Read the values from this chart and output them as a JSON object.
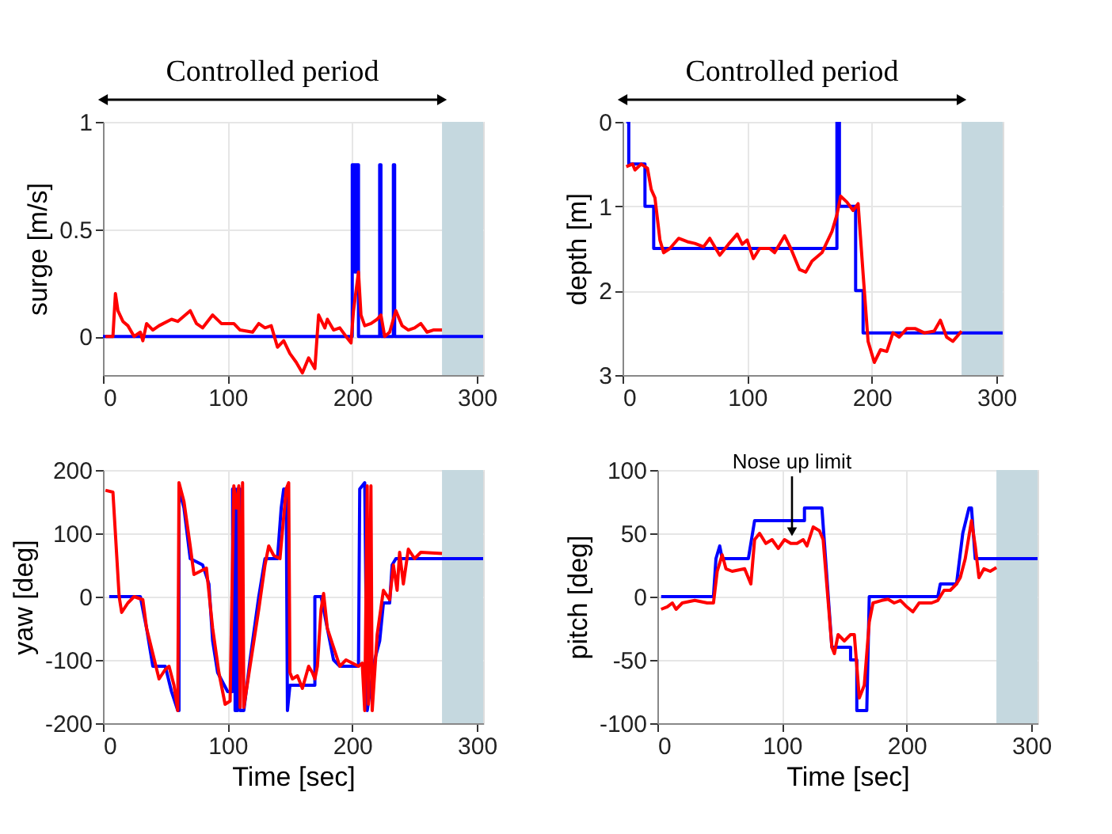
{
  "chart_data": [
    {
      "type": "line",
      "title": "Controlled period",
      "ylabel": "surge [m/s]",
      "xlim": [
        0,
        305
      ],
      "xticks": [
        0,
        100,
        200,
        300
      ],
      "ylim": [
        -0.18,
        1
      ],
      "yticks": [
        0,
        0.5,
        1
      ],
      "grid": true,
      "bands": [
        {
          "axis": "x",
          "from": 272,
          "to": 305,
          "color": "#c5d8df"
        }
      ],
      "series": [
        {
          "color": "#0000ff",
          "x": [
            0,
            200,
            200,
            202,
            202,
            203,
            203,
            205,
            205,
            222,
            222,
            223,
            223,
            233,
            233,
            234,
            234,
            305
          ],
          "values": [
            0,
            0,
            0.8,
            0.8,
            0.3,
            0.3,
            0.8,
            0.8,
            0,
            0,
            0.8,
            0.8,
            0,
            0,
            0.8,
            0.8,
            0,
            0
          ]
        },
        {
          "color": "#ff0000",
          "x": [
            2,
            8,
            10,
            12,
            16,
            20,
            25,
            30,
            32,
            35,
            40,
            45,
            55,
            60,
            70,
            75,
            80,
            88,
            95,
            105,
            110,
            120,
            125,
            130,
            135,
            140,
            145,
            150,
            155,
            160,
            165,
            170,
            173,
            178,
            180,
            185,
            190,
            195,
            199,
            201,
            205,
            207,
            210,
            215,
            220,
            223,
            226,
            230,
            235,
            240,
            245,
            250,
            255,
            260,
            265,
            272
          ],
          "values": [
            0,
            0,
            0.2,
            0.12,
            0.07,
            0.05,
            0,
            0.02,
            -0.02,
            0.06,
            0.03,
            0.05,
            0.08,
            0.07,
            0.12,
            0.06,
            0.04,
            0.1,
            0.06,
            0.06,
            0.03,
            0.02,
            0.06,
            0.04,
            0.05,
            -0.05,
            -0.02,
            -0.08,
            -0.12,
            -0.17,
            -0.1,
            -0.15,
            0.1,
            0.04,
            0.08,
            0.03,
            0.04,
            0,
            -0.03,
            0.12,
            0.3,
            0.1,
            0.05,
            0.06,
            0.08,
            0.1,
            0,
            0.02,
            0.12,
            0.05,
            0.03,
            0.04,
            0.06,
            0.02,
            0.03,
            0.03
          ]
        }
      ]
    },
    {
      "type": "line",
      "title": "Controlled period",
      "ylabel": "depth [m]",
      "xlim": [
        0,
        305
      ],
      "xticks": [
        0,
        100,
        200,
        300
      ],
      "ylim": [
        3,
        0
      ],
      "yticks": [
        0,
        1,
        2,
        3
      ],
      "grid": true,
      "bands": [
        {
          "axis": "x",
          "from": 272,
          "to": 305,
          "color": "#c5d8df"
        }
      ],
      "series": [
        {
          "color": "#0000ff",
          "x": [
            3,
            5,
            5,
            18,
            18,
            25,
            25,
            172,
            172,
            174,
            174,
            187,
            187,
            193,
            193,
            305
          ],
          "values": [
            0,
            0,
            0.5,
            0.5,
            1,
            1,
            1.5,
            1.5,
            0,
            0,
            1,
            1,
            2,
            2,
            2.5,
            2.5
          ]
        },
        {
          "color": "#ff0000",
          "x": [
            3,
            8,
            10,
            15,
            20,
            23,
            26,
            30,
            33,
            38,
            45,
            52,
            58,
            65,
            70,
            78,
            85,
            92,
            96,
            100,
            105,
            110,
            118,
            122,
            130,
            135,
            142,
            147,
            152,
            160,
            168,
            172,
            175,
            180,
            185,
            189,
            193,
            197,
            202,
            207,
            212,
            217,
            222,
            228,
            235,
            242,
            250,
            255,
            260,
            265,
            272
          ],
          "values": [
            0.53,
            0.5,
            0.57,
            0.5,
            0.55,
            0.8,
            0.9,
            1.4,
            1.55,
            1.5,
            1.38,
            1.42,
            1.44,
            1.48,
            1.38,
            1.58,
            1.45,
            1.33,
            1.45,
            1.4,
            1.62,
            1.5,
            1.5,
            1.55,
            1.35,
            1.5,
            1.75,
            1.78,
            1.65,
            1.55,
            1.3,
            1.1,
            0.88,
            0.95,
            1.05,
            0.97,
            1.8,
            2.6,
            2.85,
            2.7,
            2.72,
            2.5,
            2.55,
            2.45,
            2.45,
            2.5,
            2.48,
            2.35,
            2.55,
            2.6,
            2.48
          ]
        }
      ]
    },
    {
      "type": "line",
      "xlabel": "Time [sec]",
      "ylabel": "yaw [deg]",
      "xlim": [
        0,
        305
      ],
      "xticks": [
        0,
        100,
        200,
        300
      ],
      "ylim": [
        -200,
        200
      ],
      "yticks": [
        -200,
        -100,
        0,
        100,
        200
      ],
      "grid": true,
      "bands": [
        {
          "axis": "x",
          "from": 272,
          "to": 305,
          "color": "#c5d8df"
        }
      ],
      "series": [
        {
          "color": "#0000ff",
          "x": [
            5,
            30,
            35,
            40,
            50,
            55,
            60,
            61,
            61,
            65,
            70,
            80,
            85,
            88,
            92,
            100,
            104,
            104,
            106,
            106,
            108,
            108,
            110,
            110,
            113,
            118,
            125,
            130,
            140,
            143,
            145,
            147,
            148,
            150,
            170,
            170,
            175,
            185,
            190,
            205,
            206,
            210,
            212,
            218,
            222,
            225,
            230,
            232,
            235,
            305
          ],
          "values": [
            0,
            0,
            -50,
            -110,
            -110,
            -150,
            -180,
            -180,
            170,
            140,
            60,
            50,
            20,
            -70,
            -120,
            -150,
            -150,
            170,
            170,
            -180,
            -180,
            170,
            170,
            -180,
            -180,
            -100,
            0,
            60,
            60,
            140,
            170,
            170,
            -180,
            -140,
            -140,
            0,
            0,
            -100,
            -110,
            -110,
            170,
            180,
            -180,
            -100,
            -70,
            -10,
            -10,
            50,
            60,
            60
          ]
        },
        {
          "color": "#ff0000",
          "x": [
            2,
            8,
            13,
            15,
            20,
            25,
            32,
            35,
            40,
            45,
            50,
            53,
            57,
            60,
            61,
            65,
            70,
            73,
            78,
            83,
            88,
            93,
            98,
            102,
            105,
            107,
            109,
            110,
            112,
            113,
            118,
            125,
            130,
            133,
            137,
            142,
            147,
            149,
            150,
            152,
            156,
            160,
            165,
            168,
            170,
            172,
            175,
            177,
            180,
            185,
            190,
            195,
            200,
            205,
            208,
            210,
            212,
            213,
            215,
            216,
            220,
            225,
            230,
            233,
            236,
            238,
            241,
            245,
            250,
            255,
            272
          ],
          "values": [
            168,
            165,
            0,
            -25,
            -10,
            0,
            -5,
            -50,
            -90,
            -130,
            -115,
            -110,
            -140,
            -180,
            180,
            150,
            80,
            35,
            40,
            45,
            -50,
            -120,
            -170,
            -165,
            175,
            140,
            175,
            -175,
            180,
            -175,
            -110,
            -20,
            50,
            80,
            65,
            60,
            170,
            180,
            -120,
            -130,
            -125,
            -145,
            -110,
            -120,
            -130,
            -110,
            -20,
            5,
            -50,
            -80,
            -110,
            -100,
            -105,
            -110,
            -105,
            -180,
            175,
            -170,
            175,
            -180,
            -60,
            10,
            -5,
            50,
            10,
            70,
            20,
            75,
            60,
            70,
            68
          ]
        }
      ]
    },
    {
      "type": "line",
      "xlabel": "Time [sec]",
      "ylabel": "pitch [deg]",
      "xlim": [
        0,
        305
      ],
      "xticks": [
        0,
        100,
        200,
        300
      ],
      "ylim": [
        -100,
        100
      ],
      "yticks": [
        -100,
        -50,
        0,
        50,
        100
      ],
      "grid": true,
      "annotations": [
        {
          "text": "Nose up limit",
          "x": 108,
          "y": 45
        }
      ],
      "bands": [
        {
          "axis": "x",
          "from": 272,
          "to": 305,
          "color": "#c5d8df"
        }
      ],
      "series": [
        {
          "color": "#0000ff",
          "x": [
            3,
            45,
            47,
            50,
            52,
            73,
            78,
            118,
            118,
            132,
            140,
            155,
            155,
            160,
            160,
            168,
            170,
            225,
            227,
            240,
            245,
            250,
            252,
            255,
            305
          ],
          "values": [
            0,
            0,
            30,
            40,
            30,
            30,
            60,
            60,
            70,
            70,
            -40,
            -40,
            -50,
            -50,
            -90,
            -90,
            0,
            0,
            10,
            10,
            50,
            70,
            70,
            30,
            30
          ]
        },
        {
          "color": "#ff0000",
          "x": [
            3,
            8,
            12,
            15,
            20,
            30,
            40,
            45,
            48,
            52,
            55,
            60,
            70,
            75,
            78,
            82,
            87,
            92,
            97,
            102,
            107,
            112,
            117,
            120,
            125,
            130,
            133,
            140,
            142,
            145,
            150,
            155,
            158,
            162,
            166,
            170,
            173,
            180,
            185,
            190,
            195,
            200,
            205,
            210,
            220,
            225,
            230,
            235,
            240,
            243,
            247,
            252,
            255,
            258,
            262,
            267,
            272
          ],
          "values": [
            -10,
            -8,
            -5,
            -10,
            -5,
            -3,
            -5,
            -5,
            20,
            33,
            22,
            20,
            22,
            10,
            45,
            50,
            42,
            45,
            38,
            45,
            42,
            42,
            45,
            40,
            55,
            52,
            45,
            -40,
            -45,
            -30,
            -35,
            -30,
            -30,
            -80,
            -70,
            -20,
            -5,
            -3,
            -2,
            -5,
            -3,
            -8,
            -12,
            -5,
            -5,
            -3,
            5,
            5,
            10,
            15,
            30,
            60,
            40,
            15,
            22,
            20,
            23
          ]
        }
      ]
    }
  ]
}
